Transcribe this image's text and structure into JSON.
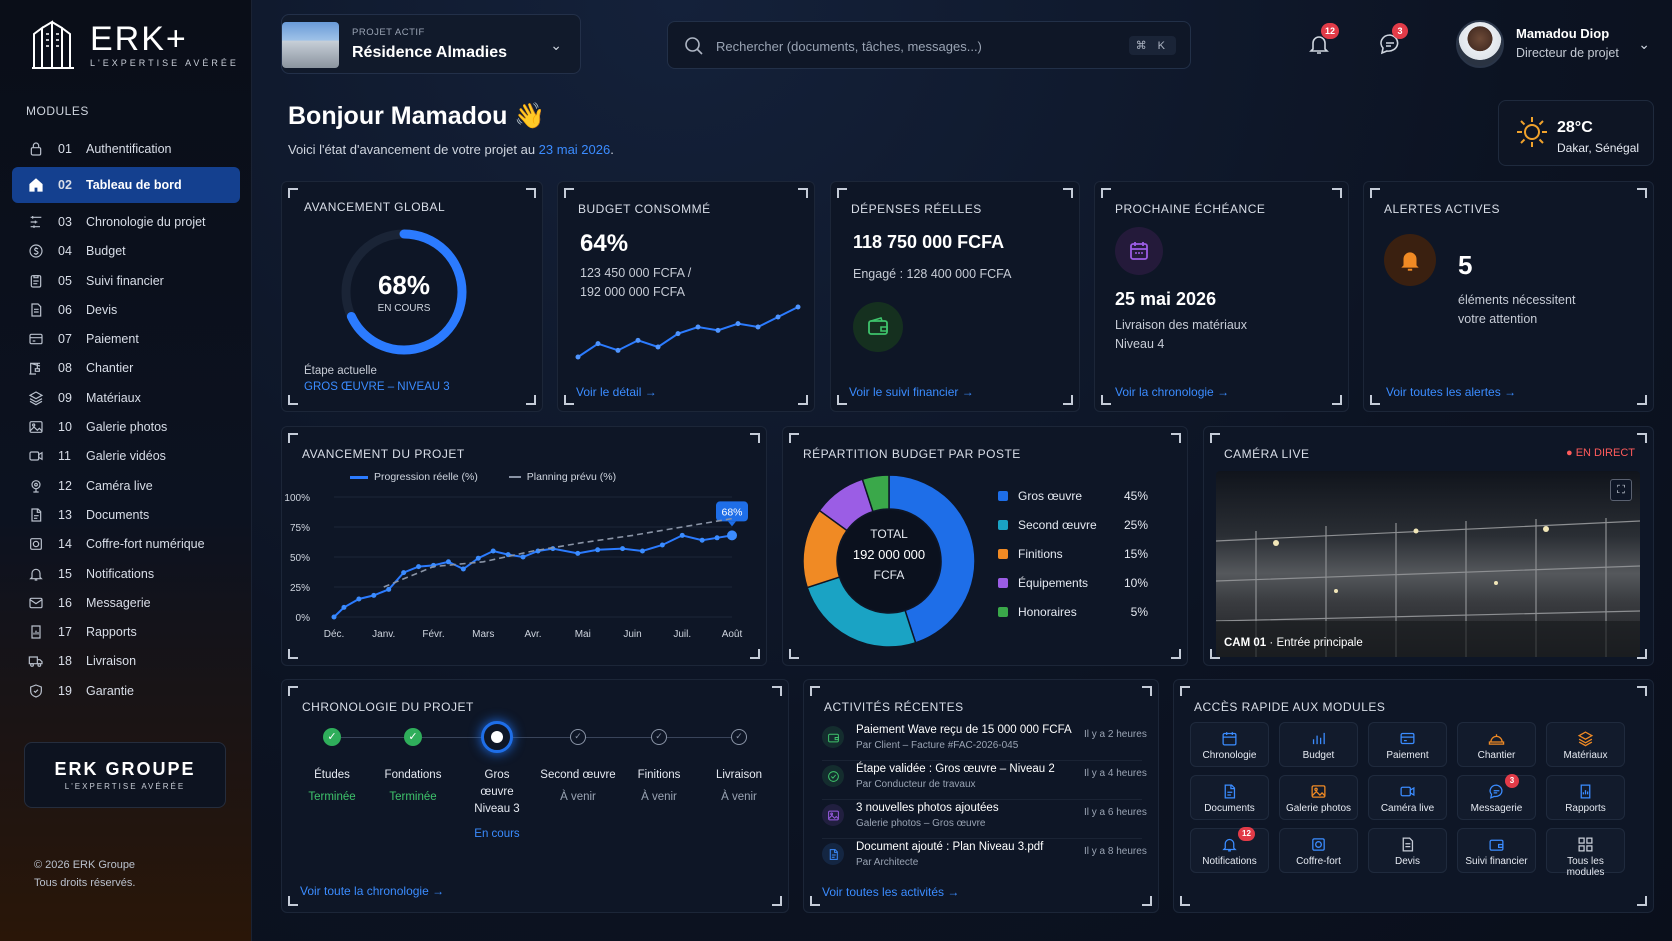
{
  "brand": {
    "name": "ERK+",
    "tagline": "L'EXPERTISE AVÉRÉE"
  },
  "sidebar": {
    "section_title": "MODULES",
    "items": [
      {
        "num": "01",
        "label": "Authentification",
        "icon": "lock-icon"
      },
      {
        "num": "02",
        "label": "Tableau de bord",
        "icon": "home-icon",
        "active": true
      },
      {
        "num": "03",
        "label": "Chronologie du projet",
        "icon": "timeline-icon"
      },
      {
        "num": "04",
        "label": "Budget",
        "icon": "dollar-icon"
      },
      {
        "num": "05",
        "label": "Suivi financier",
        "icon": "clipboard-icon"
      },
      {
        "num": "06",
        "label": "Devis",
        "icon": "document-icon"
      },
      {
        "num": "07",
        "label": "Paiement",
        "icon": "card-icon"
      },
      {
        "num": "08",
        "label": "Chantier",
        "icon": "crane-icon"
      },
      {
        "num": "09",
        "label": "Matériaux",
        "icon": "layers-icon"
      },
      {
        "num": "10",
        "label": "Galerie photos",
        "icon": "image-icon"
      },
      {
        "num": "11",
        "label": "Galerie vidéos",
        "icon": "video-icon"
      },
      {
        "num": "12",
        "label": "Caméra live",
        "icon": "camera-icon"
      },
      {
        "num": "13",
        "label": "Documents",
        "icon": "file-icon"
      },
      {
        "num": "14",
        "label": "Coffre-fort numérique",
        "icon": "safe-icon"
      },
      {
        "num": "15",
        "label": "Notifications",
        "icon": "bell-icon"
      },
      {
        "num": "16",
        "label": "Messagerie",
        "icon": "mail-icon"
      },
      {
        "num": "17",
        "label": "Rapports",
        "icon": "report-icon"
      },
      {
        "num": "18",
        "label": "Livraison",
        "icon": "truck-icon"
      },
      {
        "num": "19",
        "label": "Garantie",
        "icon": "shield-icon"
      }
    ],
    "footer_brand": "ERK GROUPE",
    "footer_tagline": "L'EXPERTISE AVÉRÉE",
    "copyright": "© 2026 ERK Groupe",
    "rights": "Tous droits réservés."
  },
  "header": {
    "project_label": "PROJET ACTIF",
    "project_name": "Résidence Almadies",
    "search_placeholder": "Rechercher (documents, tâches, messages...)",
    "search_shortcut": "⌘ K",
    "notif_count": "12",
    "msg_count": "3",
    "user_name": "Mamadou Diop",
    "user_role": "Directeur de projet"
  },
  "greeting": {
    "title": "Bonjour Mamadou 👋",
    "subtitle_prefix": "Voici l'état d'avancement de votre projet au ",
    "date": "23 mai 2026",
    "subtitle_suffix": "."
  },
  "weather": {
    "temp": "28°C",
    "city": "Dakar, Sénégal"
  },
  "kpi": {
    "progress": {
      "title": "AVANCEMENT GLOBAL",
      "value": "68%",
      "fraction": 0.68,
      "status": "EN COURS",
      "step_label": "Étape actuelle",
      "step": "GROS ŒUVRE – NIVEAU 3"
    },
    "budget": {
      "title": "BUDGET CONSOMMÉ",
      "value": "64%",
      "line1": "123 450 000 FCFA /",
      "line2": "192 000 000 FCFA",
      "link": "Voir le détail",
      "spark": [
        3,
        7,
        5,
        8,
        6,
        10,
        12,
        11,
        13,
        12,
        15,
        18
      ]
    },
    "expenses": {
      "title": "DÉPENSES RÉELLES",
      "value": "118 750 000 FCFA",
      "committed": "Engagé : 128 400 000 FCFA",
      "link": "Voir le suivi financier"
    },
    "deadline": {
      "title": "PROCHAINE ÉCHÉANCE",
      "date": "25 mai 2026",
      "line1": "Livraison des matériaux",
      "line2": "Niveau 4",
      "link": "Voir la chronologie"
    },
    "alerts": {
      "title": "ALERTES ACTIVES",
      "count": "5",
      "line1": "éléments nécessitent",
      "line2": "votre attention",
      "link": "Voir toutes les alertes"
    }
  },
  "chart_data": {
    "type": "line",
    "title": "AVANCEMENT DU PROJET",
    "x": [
      "Déc.",
      "Janv.",
      "Févr.",
      "Mars",
      "Avr.",
      "Mai",
      "Juin",
      "Juil.",
      "Août"
    ],
    "yticks": [
      "100%",
      "75%",
      "50%",
      "25%",
      "0%"
    ],
    "ylim": [
      0,
      100
    ],
    "series": [
      {
        "name": "Progression réelle (%)",
        "color": "#2b7bff",
        "values": [
          [
            0,
            0
          ],
          [
            0.2,
            8
          ],
          [
            0.5,
            15
          ],
          [
            0.8,
            18
          ],
          [
            1.1,
            23
          ],
          [
            1.4,
            37
          ],
          [
            1.7,
            42
          ],
          [
            2.0,
            43
          ],
          [
            2.3,
            46
          ],
          [
            2.6,
            40
          ],
          [
            2.9,
            49
          ],
          [
            3.2,
            55
          ],
          [
            3.5,
            52
          ],
          [
            3.8,
            50
          ],
          [
            4.1,
            55
          ],
          [
            4.4,
            57
          ],
          [
            4.9,
            53
          ],
          [
            5.3,
            56
          ],
          [
            5.8,
            57
          ],
          [
            6.2,
            55
          ],
          [
            6.6,
            60
          ],
          [
            7.0,
            68
          ],
          [
            7.4,
            64
          ],
          [
            7.7,
            66
          ],
          [
            8.0,
            68
          ]
        ]
      },
      {
        "name": "Planning prévu (%)",
        "color": "#8a94a6",
        "dashed": true,
        "values": [
          [
            1.0,
            25
          ],
          [
            2.0,
            42
          ],
          [
            3.0,
            46
          ],
          [
            4.0,
            55
          ],
          [
            5.0,
            62
          ],
          [
            6.0,
            68
          ],
          [
            7.0,
            75
          ],
          [
            8.0,
            82
          ]
        ]
      }
    ],
    "callout": "68%",
    "legend": "top"
  },
  "budget_split": {
    "title": "RÉPARTITION BUDGET PAR POSTE",
    "total_label": "TOTAL",
    "total_value": "192 000 000",
    "total_unit": "FCFA",
    "slices": [
      {
        "name": "Gros œuvre",
        "pct": 45,
        "label": "45%",
        "color": "#1e6ee8"
      },
      {
        "name": "Second œuvre",
        "pct": 25,
        "label": "25%",
        "color": "#1aa3c4"
      },
      {
        "name": "Finitions",
        "pct": 15,
        "label": "15%",
        "color": "#f08a24"
      },
      {
        "name": "Équipements",
        "pct": 10,
        "label": "10%",
        "color": "#9b5de5"
      },
      {
        "name": "Honoraires",
        "pct": 5,
        "label": "5%",
        "color": "#3aa84a"
      }
    ]
  },
  "camera": {
    "title": "CAMÉRA LIVE",
    "live": "● EN DIRECT",
    "cam_id": "CAM 01",
    "cam_sep": "·",
    "cam_name": "Entrée principale"
  },
  "timeline": {
    "title": "CHRONOLOGIE DU PROJET",
    "steps": [
      {
        "name": "Études",
        "status": "Terminée",
        "state": "done"
      },
      {
        "name": "Fondations",
        "status": "Terminée",
        "state": "done"
      },
      {
        "name": "Gros œuvre Niveau 3",
        "status": "En cours",
        "state": "current"
      },
      {
        "name": "Second œuvre",
        "status": "À venir",
        "state": "todo"
      },
      {
        "name": "Finitions",
        "status": "À venir",
        "state": "todo"
      },
      {
        "name": "Livraison",
        "status": "À venir",
        "state": "todo"
      }
    ],
    "link": "Voir toute la chronologie"
  },
  "activities": {
    "title": "ACTIVITÉS RÉCENTES",
    "items": [
      {
        "title": "Paiement Wave reçu de 15 000 000 FCFA",
        "sub": "Par Client – Facture #FAC-2026-045",
        "time": "Il y a 2 heures",
        "icon": "wallet-icon",
        "color": "#3ec36b"
      },
      {
        "title": "Étape validée : Gros œuvre – Niveau 2",
        "sub": "Par Conducteur de travaux",
        "time": "Il y a 4 heures",
        "icon": "check-icon",
        "color": "#3ec36b"
      },
      {
        "title": "3 nouvelles photos ajoutées",
        "sub": "Galerie photos – Gros œuvre",
        "time": "Il y a 6 heures",
        "icon": "image-icon",
        "color": "#9b5de5"
      },
      {
        "title": "Document ajouté : Plan Niveau 3.pdf",
        "sub": "Par Architecte",
        "time": "Il y a 8 heures",
        "icon": "file-icon",
        "color": "#3b8cff"
      }
    ],
    "link": "Voir toutes les activités"
  },
  "quick_access": {
    "title": "ACCÈS RAPIDE AUX MODULES",
    "items": [
      {
        "label": "Chronologie",
        "icon": "calendar-icon",
        "color": "#3b8cff"
      },
      {
        "label": "Budget",
        "icon": "bar-chart-icon",
        "color": "#3b8cff"
      },
      {
        "label": "Paiement",
        "icon": "card-icon",
        "color": "#3b8cff"
      },
      {
        "label": "Chantier",
        "icon": "helmet-icon",
        "color": "#f08a24"
      },
      {
        "label": "Matériaux",
        "icon": "layers-icon",
        "color": "#f08a24"
      },
      {
        "label": "Documents",
        "icon": "file-icon",
        "color": "#3b8cff"
      },
      {
        "label": "Galerie photos",
        "icon": "image-icon",
        "color": "#f08a24"
      },
      {
        "label": "Caméra live",
        "icon": "video-icon",
        "color": "#3b8cff"
      },
      {
        "label": "Messagerie",
        "icon": "chat-icon",
        "color": "#3b8cff",
        "badge": "3"
      },
      {
        "label": "Rapports",
        "icon": "report-icon",
        "color": "#3b8cff"
      },
      {
        "label": "Notifications",
        "icon": "bell-icon",
        "color": "#3b8cff",
        "badge": "12"
      },
      {
        "label": "Coffre-fort",
        "icon": "safe-icon",
        "color": "#3b8cff"
      },
      {
        "label": "Devis",
        "icon": "document-icon",
        "color": "#c7ccd6"
      },
      {
        "label": "Suivi financier",
        "icon": "wallet-icon",
        "color": "#3b8cff"
      },
      {
        "label": "Tous les modules",
        "icon": "grid-icon",
        "color": "#c7ccd6"
      }
    ]
  }
}
